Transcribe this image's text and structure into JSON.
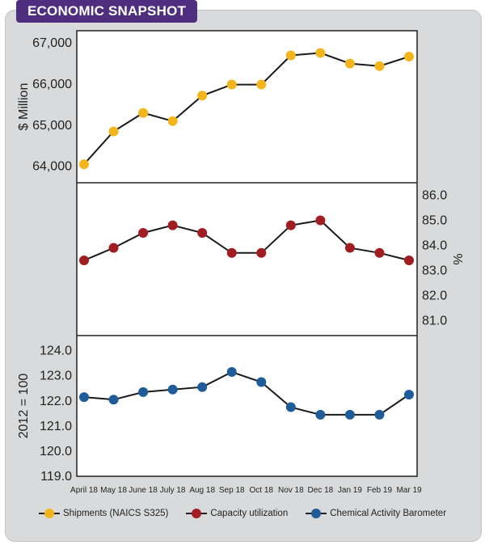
{
  "banner": {
    "title": "ECONOMIC SNAPSHOT"
  },
  "chart_data": {
    "type": "line",
    "categories": [
      "April 18",
      "May 18",
      "June 18",
      "July 18",
      "Aug 18",
      "Sep 18",
      "Oct 18",
      "Nov 18",
      "Dec 18",
      "Jan 19",
      "Feb 19",
      "Mar 19"
    ],
    "panels": [
      {
        "name": "Shipments (NAICS S325)",
        "color": "#f2b51b",
        "ylabel": "$ Million",
        "axis_side": "left",
        "ylim": [
          63600,
          67300
        ],
        "yticks": [
          64000,
          65000,
          66000,
          67000
        ],
        "ytick_labels": [
          "64,000",
          "65,000",
          "66,000",
          "67,000"
        ],
        "values": [
          64050,
          64850,
          65300,
          65100,
          65720,
          65990,
          65990,
          66700,
          66760,
          66500,
          66440,
          66670
        ]
      },
      {
        "name": "Capacity utilization",
        "color": "#a01d22",
        "ylabel": "%",
        "axis_side": "right",
        "ylim": [
          80.4,
          86.5
        ],
        "yticks": [
          81.0,
          82.0,
          83.0,
          84.0,
          85.0,
          86.0
        ],
        "ytick_labels": [
          "81.0",
          "82.0",
          "83.0",
          "84.0",
          "85.0",
          "86.0"
        ],
        "values": [
          83.4,
          83.9,
          84.5,
          84.8,
          84.5,
          83.7,
          83.7,
          84.8,
          85.0,
          83.9,
          83.7,
          83.4
        ]
      },
      {
        "name": "Chemical Activity Barometer",
        "color": "#1f5c99",
        "ylabel": "2012 = 100",
        "axis_side": "left",
        "ylim": [
          119.0,
          124.6
        ],
        "yticks": [
          119.0,
          120.0,
          121.0,
          122.0,
          123.0,
          124.0
        ],
        "ytick_labels": [
          "119.0",
          "120.0",
          "121.0",
          "122.0",
          "123.0",
          "124.0"
        ],
        "values": [
          122.15,
          122.05,
          122.35,
          122.45,
          122.55,
          123.15,
          122.75,
          121.75,
          121.45,
          121.45,
          121.45,
          122.25
        ]
      }
    ]
  }
}
